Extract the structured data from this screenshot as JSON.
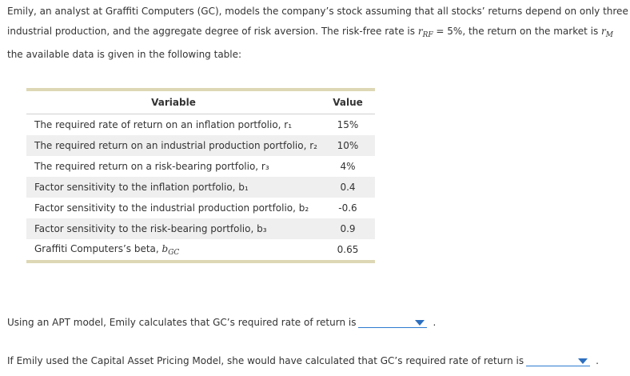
{
  "intro": {
    "line1": "Emily, an analyst at Graffiti Computers (GC), models the company’s stock assuming that all stocks’ returns depend on only three",
    "line2_pre": "industrial production, and the aggregate degree of risk aversion. The risk-free rate is ",
    "rf_sym": "r",
    "rf_sub": "RF",
    "line2_mid": " = 5%, the return on the market is ",
    "rm_sym": "r",
    "rm_sub": "M",
    "line3": "the available data is given in the following table:"
  },
  "table": {
    "headers": {
      "variable": "Variable",
      "value": "Value"
    },
    "rows": [
      {
        "label": "The required rate of return on an inflation portfolio, r₁",
        "value": "15%"
      },
      {
        "label": "The required return on an industrial production portfolio, r₂",
        "value": "10%"
      },
      {
        "label": "The required return on a risk-bearing portfolio, r₃",
        "value": "4%"
      },
      {
        "label": "Factor sensitivity to the inflation portfolio, b₁",
        "value": "0.4"
      },
      {
        "label": "Factor sensitivity to the industrial production portfolio, b₂",
        "value": "-0.6"
      },
      {
        "label": "Factor sensitivity to the risk-bearing portfolio, b₃",
        "value": "0.9"
      },
      {
        "label": "Graffiti Computers’s beta, ",
        "sym": "b",
        "sub": "GC",
        "value": "0.65"
      }
    ]
  },
  "questions": {
    "apt_text": "Using an APT model, Emily calculates that GC’s required rate of return is",
    "capm_text": "If Emily used the Capital Asset Pricing Model, she would have calculated that GC’s required rate of return is",
    "period": "."
  },
  "colors": {
    "table_rule": "#ded7b5",
    "row_shade": "#efefef",
    "dropdown_accent": "#2c6fc0"
  }
}
